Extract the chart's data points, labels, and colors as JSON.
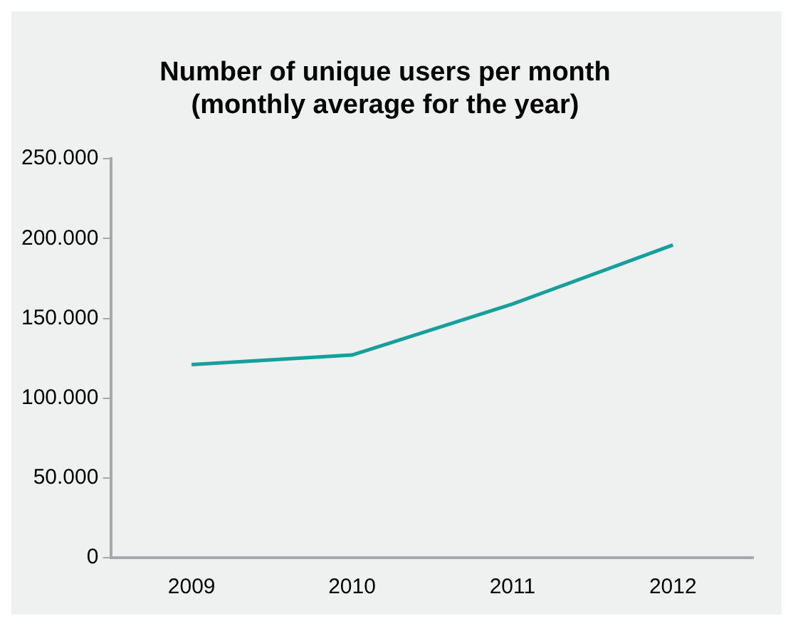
{
  "chart_data": {
    "type": "line",
    "title": [
      "Number of unique users per month",
      "(monthly average for the year)"
    ],
    "categories": [
      "2009",
      "2010",
      "2011",
      "2012"
    ],
    "series": [
      {
        "color": "#17a09b",
        "values": [
          121000,
          127000,
          159000,
          196000
        ]
      }
    ],
    "ylim": [
      0,
      250000
    ],
    "yticks": [
      {
        "value": 0,
        "label": "0"
      },
      {
        "value": 50000,
        "label": "50.000"
      },
      {
        "value": 100000,
        "label": "100.000"
      },
      {
        "value": 150000,
        "label": "150.000"
      },
      {
        "value": 200000,
        "label": "200.000"
      },
      {
        "value": 250000,
        "label": "250.000"
      }
    ],
    "grid": false,
    "legend": false,
    "marker": "none",
    "line_style": "solid"
  }
}
